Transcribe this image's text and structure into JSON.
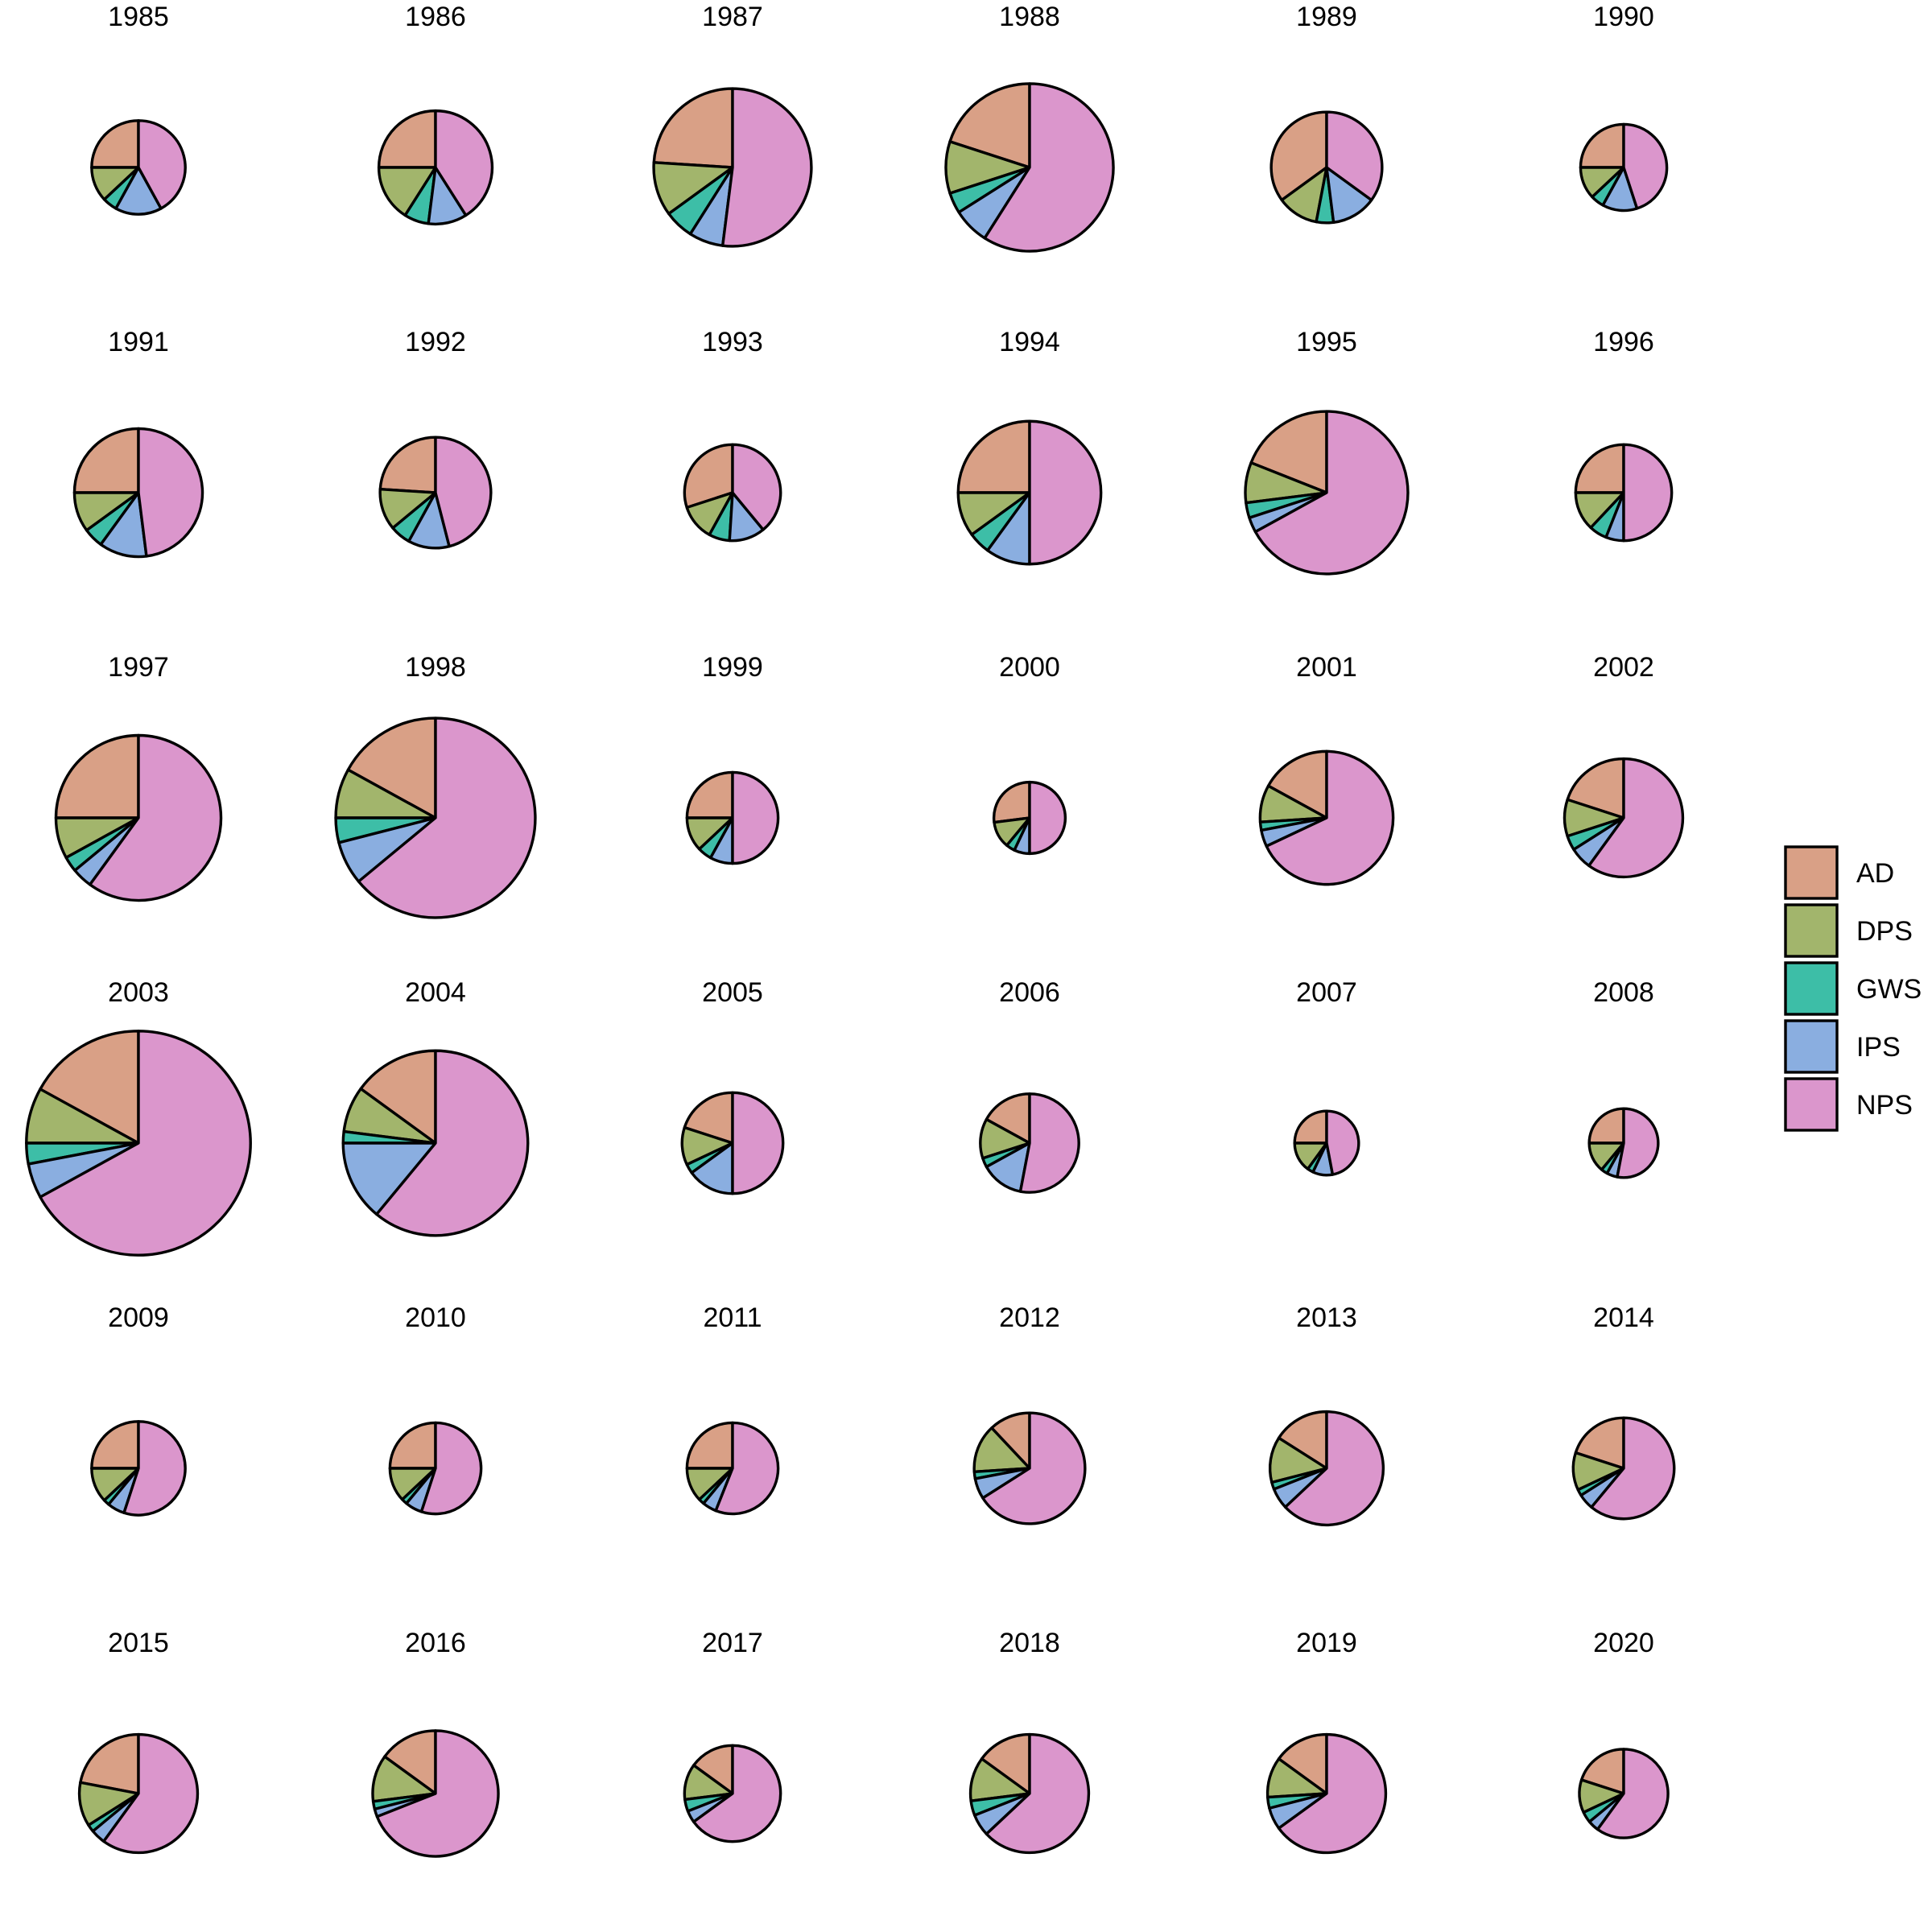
{
  "chart_data": {
    "type": "pie",
    "layout": "small-multiples",
    "categories": [
      "AD",
      "DPS",
      "GWS",
      "IPS",
      "NPS"
    ],
    "colors": {
      "AD": "#d9a086",
      "DPS": "#a2b56c",
      "GWS": "#3dbea7",
      "IPS": "#8aaee0",
      "NPS": "#db96cc"
    },
    "legend": {
      "position": "right",
      "items": [
        {
          "key": "AD",
          "label": "AD"
        },
        {
          "key": "DPS",
          "label": "DPS"
        },
        {
          "key": "GWS",
          "label": "GWS"
        },
        {
          "key": "IPS",
          "label": "IPS"
        },
        {
          "key": "NPS",
          "label": "NPS"
        }
      ]
    },
    "size_encoding": "pie radius proportional to total",
    "panels": [
      {
        "title": "1985",
        "total": 38,
        "values": {
          "AD": 25,
          "DPS": 12,
          "GWS": 5,
          "IPS": 16,
          "NPS": 42
        }
      },
      {
        "title": "1986",
        "total": 46,
        "values": {
          "AD": 25,
          "DPS": 16,
          "GWS": 7,
          "IPS": 11,
          "NPS": 41
        }
      },
      {
        "title": "1987",
        "total": 64,
        "values": {
          "AD": 24,
          "DPS": 11,
          "GWS": 6,
          "IPS": 7,
          "NPS": 52
        }
      },
      {
        "title": "1988",
        "total": 68,
        "values": {
          "AD": 20,
          "DPS": 10,
          "GWS": 4,
          "IPS": 7,
          "NPS": 59
        }
      },
      {
        "title": "1989",
        "total": 45,
        "values": {
          "AD": 35,
          "DPS": 12,
          "GWS": 5,
          "IPS": 13,
          "NPS": 35
        }
      },
      {
        "title": "1990",
        "total": 35,
        "values": {
          "AD": 25,
          "DPS": 12,
          "GWS": 5,
          "IPS": 13,
          "NPS": 45
        }
      },
      {
        "title": "1991",
        "total": 52,
        "values": {
          "AD": 25,
          "DPS": 10,
          "GWS": 5,
          "IPS": 12,
          "NPS": 48
        }
      },
      {
        "title": "1992",
        "total": 45,
        "values": {
          "AD": 24,
          "DPS": 12,
          "GWS": 6,
          "IPS": 12,
          "NPS": 46
        }
      },
      {
        "title": "1993",
        "total": 39,
        "values": {
          "AD": 30,
          "DPS": 12,
          "GWS": 7,
          "IPS": 12,
          "NPS": 39
        }
      },
      {
        "title": "1994",
        "total": 58,
        "values": {
          "AD": 25,
          "DPS": 10,
          "GWS": 5,
          "IPS": 10,
          "NPS": 50
        }
      },
      {
        "title": "1995",
        "total": 66,
        "values": {
          "AD": 19,
          "DPS": 8,
          "GWS": 3,
          "IPS": 3,
          "NPS": 67
        }
      },
      {
        "title": "1996",
        "total": 39,
        "values": {
          "AD": 25,
          "DPS": 13,
          "GWS": 6,
          "IPS": 6,
          "NPS": 50
        }
      },
      {
        "title": "1997",
        "total": 67,
        "values": {
          "AD": 25,
          "DPS": 8,
          "GWS": 3,
          "IPS": 4,
          "NPS": 60
        }
      },
      {
        "title": "1998",
        "total": 81,
        "values": {
          "AD": 17,
          "DPS": 8,
          "GWS": 4,
          "IPS": 7,
          "NPS": 64
        }
      },
      {
        "title": "1999",
        "total": 37,
        "values": {
          "AD": 25,
          "DPS": 12,
          "GWS": 5,
          "IPS": 8,
          "NPS": 50
        }
      },
      {
        "title": "2000",
        "total": 29,
        "values": {
          "AD": 27,
          "DPS": 12,
          "GWS": 4,
          "IPS": 7,
          "NPS": 50
        }
      },
      {
        "title": "2001",
        "total": 54,
        "values": {
          "AD": 17,
          "DPS": 9,
          "GWS": 2,
          "IPS": 4,
          "NPS": 68
        }
      },
      {
        "title": "2002",
        "total": 48,
        "values": {
          "AD": 20,
          "DPS": 10,
          "GWS": 4,
          "IPS": 6,
          "NPS": 60
        }
      },
      {
        "title": "2003",
        "total": 91,
        "values": {
          "AD": 17,
          "DPS": 8,
          "GWS": 3,
          "IPS": 5,
          "NPS": 67
        }
      },
      {
        "title": "2004",
        "total": 75,
        "values": {
          "AD": 15,
          "DPS": 8,
          "GWS": 2,
          "IPS": 14,
          "NPS": 61
        }
      },
      {
        "title": "2005",
        "total": 41,
        "values": {
          "AD": 20,
          "DPS": 12,
          "GWS": 3,
          "IPS": 15,
          "NPS": 50
        }
      },
      {
        "title": "2006",
        "total": 40,
        "values": {
          "AD": 17,
          "DPS": 13,
          "GWS": 3,
          "IPS": 14,
          "NPS": 53
        }
      },
      {
        "title": "2007",
        "total": 26,
        "values": {
          "AD": 25,
          "DPS": 15,
          "GWS": 3,
          "IPS": 10,
          "NPS": 47
        }
      },
      {
        "title": "2008",
        "total": 28,
        "values": {
          "AD": 25,
          "DPS": 14,
          "GWS": 3,
          "IPS": 5,
          "NPS": 53
        }
      },
      {
        "title": "2009",
        "total": 38,
        "values": {
          "AD": 25,
          "DPS": 12,
          "GWS": 2,
          "IPS": 6,
          "NPS": 55
        }
      },
      {
        "title": "2010",
        "total": 37,
        "values": {
          "AD": 25,
          "DPS": 12,
          "GWS": 2,
          "IPS": 6,
          "NPS": 55
        }
      },
      {
        "title": "2011",
        "total": 37,
        "values": {
          "AD": 25,
          "DPS": 12,
          "GWS": 2,
          "IPS": 5,
          "NPS": 56
        }
      },
      {
        "title": "2012",
        "total": 45,
        "values": {
          "AD": 12,
          "DPS": 14,
          "GWS": 2,
          "IPS": 6,
          "NPS": 66
        }
      },
      {
        "title": "2013",
        "total": 46,
        "values": {
          "AD": 16,
          "DPS": 13,
          "GWS": 2,
          "IPS": 6,
          "NPS": 63
        }
      },
      {
        "title": "2014",
        "total": 41,
        "values": {
          "AD": 20,
          "DPS": 12,
          "GWS": 2,
          "IPS": 5,
          "NPS": 61
        }
      },
      {
        "title": "2015",
        "total": 48,
        "values": {
          "AD": 22,
          "DPS": 12,
          "GWS": 2,
          "IPS": 4,
          "NPS": 60
        }
      },
      {
        "title": "2016",
        "total": 51,
        "values": {
          "AD": 15,
          "DPS": 12,
          "GWS": 2,
          "IPS": 2,
          "NPS": 69
        }
      },
      {
        "title": "2017",
        "total": 39,
        "values": {
          "AD": 15,
          "DPS": 12,
          "GWS": 4,
          "IPS": 4,
          "NPS": 65
        }
      },
      {
        "title": "2018",
        "total": 48,
        "values": {
          "AD": 15,
          "DPS": 12,
          "GWS": 4,
          "IPS": 6,
          "NPS": 63
        }
      },
      {
        "title": "2019",
        "total": 48,
        "values": {
          "AD": 15,
          "DPS": 11,
          "GWS": 3,
          "IPS": 6,
          "NPS": 65
        }
      },
      {
        "title": "2020",
        "total": 36,
        "values": {
          "AD": 20,
          "DPS": 12,
          "GWS": 4,
          "IPS": 4,
          "NPS": 60
        }
      }
    ]
  }
}
